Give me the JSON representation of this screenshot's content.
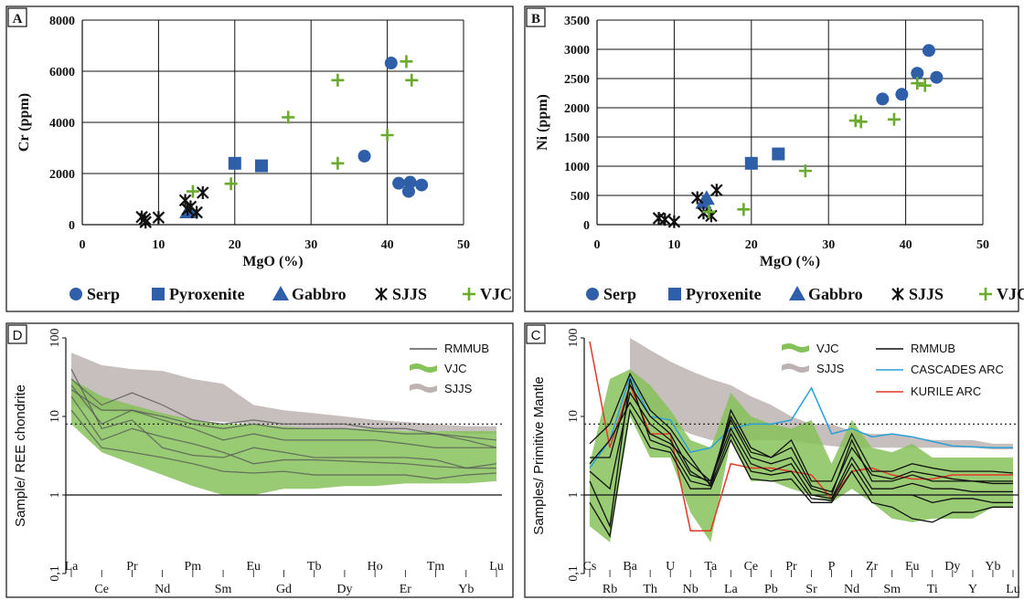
{
  "chart_data": [
    {
      "panel": "A",
      "type": "scatter",
      "xlabel": "MgO (%)",
      "ylabel": "Cr (ppm)",
      "xlim": [
        0,
        50
      ],
      "ylim": [
        0,
        8000
      ],
      "xticks": [
        "0",
        "10",
        "20",
        "30",
        "40",
        "50"
      ],
      "yticks": [
        "0",
        "2000",
        "4000",
        "6000",
        "8000"
      ],
      "grid": true,
      "series": [
        {
          "name": "Serp",
          "marker": "circle",
          "color": "#2f5fa8",
          "points": [
            [
              40.5,
              6320
            ],
            [
              37,
              2680
            ],
            [
              41.5,
              1620
            ],
            [
              43,
              1660
            ],
            [
              42.8,
              1300
            ],
            [
              44.5,
              1550
            ]
          ]
        },
        {
          "name": "Pyroxenite",
          "marker": "square",
          "color": "#2f5fa8",
          "points": [
            [
              20,
              2400
            ],
            [
              23.5,
              2300
            ]
          ]
        },
        {
          "name": "Gabbro",
          "marker": "triangle",
          "color": "#2f5fa8",
          "points": [
            [
              13.8,
              500
            ],
            [
              14.2,
              520
            ]
          ]
        },
        {
          "name": "SJJS",
          "marker": "asterisk",
          "color": "#111111",
          "points": [
            [
              7.8,
              300
            ],
            [
              8.2,
              220
            ],
            [
              8.3,
              100
            ],
            [
              10,
              280
            ],
            [
              13.5,
              950
            ],
            [
              13.8,
              600
            ],
            [
              14.2,
              700
            ],
            [
              15,
              480
            ],
            [
              15.8,
              1250
            ]
          ]
        },
        {
          "name": "VJC",
          "marker": "plus",
          "color": "#6aab2e",
          "points": [
            [
              14.5,
              1300
            ],
            [
              19.5,
              1600
            ],
            [
              27,
              4200
            ],
            [
              33.5,
              5650
            ],
            [
              33.5,
              2400
            ],
            [
              40,
              3500
            ],
            [
              42.5,
              6380
            ],
            [
              43.2,
              5650
            ]
          ]
        }
      ],
      "legend": [
        "Serp",
        "Pyroxenite",
        "Gabbro",
        "SJJS",
        "VJC"
      ]
    },
    {
      "panel": "B",
      "type": "scatter",
      "xlabel": "MgO (%)",
      "ylabel": "Ni (ppm)",
      "xlim": [
        0,
        50
      ],
      "ylim": [
        0,
        3500
      ],
      "xticks": [
        "0",
        "10",
        "20",
        "30",
        "40",
        "50"
      ],
      "yticks": [
        "0",
        "500",
        "1000",
        "1500",
        "2000",
        "2500",
        "3000",
        "3500"
      ],
      "grid": true,
      "series": [
        {
          "name": "Serp",
          "marker": "circle",
          "color": "#2f5fa8",
          "points": [
            [
              37,
              2150
            ],
            [
              39.5,
              2230
            ],
            [
              41.5,
              2590
            ],
            [
              43,
              2980
            ],
            [
              44,
              2520
            ]
          ]
        },
        {
          "name": "Pyroxenite",
          "marker": "square",
          "color": "#2f5fa8",
          "points": [
            [
              20,
              1050
            ],
            [
              23.5,
              1210
            ]
          ]
        },
        {
          "name": "Gabbro",
          "marker": "triangle",
          "color": "#2f5fa8",
          "points": [
            [
              14.2,
              450
            ],
            [
              13.8,
              380
            ]
          ]
        },
        {
          "name": "SJJS",
          "marker": "asterisk",
          "color": "#111111",
          "points": [
            [
              8,
              110
            ],
            [
              8.8,
              90
            ],
            [
              10,
              50
            ],
            [
              13,
              460
            ],
            [
              13.8,
              200
            ],
            [
              14.8,
              150
            ],
            [
              15.5,
              590
            ]
          ]
        },
        {
          "name": "VJC",
          "marker": "plus",
          "color": "#6aab2e",
          "points": [
            [
              14.5,
              220
            ],
            [
              19,
              260
            ],
            [
              27,
              920
            ],
            [
              33.5,
              1780
            ],
            [
              34.2,
              1760
            ],
            [
              38.5,
              1800
            ],
            [
              41.5,
              2420
            ],
            [
              42.5,
              2380
            ]
          ]
        }
      ],
      "legend": [
        "Serp",
        "Pyroxenite",
        "Gabbro",
        "SJJS",
        "VJC"
      ]
    },
    {
      "panel": "D",
      "type": "line",
      "ylabel": "Sample/ REE chondrite",
      "yscale": "log",
      "ylim": [
        0.1,
        100
      ],
      "yticks": [
        "0,1",
        "1",
        "10",
        "100"
      ],
      "reference_line": 8,
      "categories": [
        "La",
        "Ce",
        "Pr",
        "Nd",
        "Pm",
        "Sm",
        "Eu",
        "Gd",
        "Tb",
        "Dy",
        "Ho",
        "Er",
        "Tm",
        "Yb",
        "Lu"
      ],
      "legend": [
        "RMMUB",
        "VJC",
        "SJJS"
      ],
      "bands": [
        {
          "name": "SJJS",
          "color": "#bdb3b3",
          "upper": [
            65,
            45,
            40,
            38,
            30,
            26,
            14,
            12,
            11,
            10,
            9,
            8.5,
            8,
            7.5,
            7.5
          ],
          "lower": [
            14,
            12,
            11,
            10,
            9,
            8.5,
            8,
            7.5,
            7,
            7,
            7,
            6.5,
            6.5,
            6,
            6
          ]
        },
        {
          "name": "VJC",
          "color": "#86c25a",
          "upper": [
            30,
            18,
            14,
            11,
            9,
            8,
            8,
            7.5,
            7,
            7,
            7,
            6.5,
            6.5,
            6.5,
            6.5
          ],
          "lower": [
            8,
            3.5,
            2.5,
            1.8,
            1.3,
            1.0,
            1.0,
            1.2,
            1.2,
            1.3,
            1.3,
            1.4,
            1.4,
            1.4,
            1.5
          ]
        }
      ],
      "series": [
        {
          "name": "RMMUB",
          "values": [
            22,
            12,
            12,
            10,
            8,
            7,
            8,
            7,
            7,
            7,
            6.5,
            6,
            6,
            5.5,
            5
          ]
        },
        {
          "name": "RMMUB",
          "values": [
            30,
            14,
            20,
            14,
            9,
            8,
            9,
            8,
            8,
            8,
            7,
            7,
            6,
            5,
            4
          ]
        },
        {
          "name": "RMMUB",
          "values": [
            25,
            8,
            12,
            9,
            7,
            5,
            6,
            5,
            5,
            5,
            5,
            4.5,
            4,
            4,
            4
          ]
        },
        {
          "name": "RMMUB",
          "values": [
            18,
            5,
            7,
            5.5,
            4.5,
            3.5,
            2.5,
            2.8,
            2.8,
            2.7,
            2.6,
            2.5,
            2.3,
            2.2,
            2.2
          ]
        },
        {
          "name": "RMMUB",
          "values": [
            40,
            7,
            9,
            4,
            3.2,
            3,
            4,
            3.5,
            3,
            3,
            3,
            3,
            2.8,
            2.2,
            2.5
          ]
        },
        {
          "name": "RMMUB",
          "values": [
            12,
            4,
            3.5,
            3,
            2.5,
            2,
            1.9,
            2,
            1.8,
            1.8,
            1.8,
            1.8,
            1.6,
            1.8,
            1.9
          ]
        }
      ]
    },
    {
      "panel": "C",
      "type": "line",
      "ylabel": "Samples/ Primitive Mantle",
      "yscale": "log",
      "ylim": [
        0.1,
        100
      ],
      "yticks": [
        "0,1",
        "1",
        "10",
        "100"
      ],
      "reference_line": 8,
      "categories": [
        "Cs",
        "Rb",
        "Ba",
        "Th",
        "U",
        "Nb",
        "Ta",
        "La",
        "Ce",
        "Pb",
        "Pr",
        "Sr",
        "P",
        "Nd",
        "Zr",
        "Sm",
        "Eu",
        "Ti",
        "Dy",
        "Y",
        "Yb",
        "Lu"
      ],
      "legend": [
        "VJC",
        "SJJS",
        "RMMUB",
        "CASCADES ARC",
        "KURILE ARC"
      ],
      "bands": [
        {
          "name": "SJJS",
          "color": "#bdb3b3",
          "upper": [
            null,
            null,
            100,
            70,
            50,
            38,
            30,
            25,
            18,
            14,
            10,
            8,
            8,
            6.5,
            6,
            6,
            5.5,
            5,
            5,
            5,
            4.5,
            4.5
          ],
          "lower": [
            null,
            null,
            25,
            12,
            8,
            6,
            5,
            5,
            5,
            5,
            5,
            4.5,
            4.2,
            4,
            4,
            4,
            4,
            4,
            4,
            4,
            3.8,
            3.8
          ]
        },
        {
          "name": "VJC",
          "color": "#86c25a",
          "upper": [
            2.5,
            30,
            40,
            25,
            12,
            5,
            4,
            20,
            10,
            8,
            7,
            9,
            2.5,
            9,
            4,
            3.5,
            4.5,
            3,
            3,
            3,
            3,
            3
          ],
          "lower": [
            0.4,
            0.25,
            10,
            3,
            3,
            0.6,
            0.25,
            5,
            1.5,
            1.5,
            1.2,
            1,
            0.8,
            1.2,
            0.8,
            0.5,
            0.45,
            0.5,
            0.5,
            0.5,
            0.7,
            0.7
          ]
        }
      ],
      "series": [
        {
          "name": "CASCADES ARC",
          "color": "#2aa0d8",
          "values": [
            2.2,
            5,
            32,
            10,
            9,
            3.5,
            4,
            7,
            8,
            8,
            9,
            23,
            6,
            7,
            5.5,
            6,
            5.5,
            4.8,
            4.2,
            4.1,
            4,
            4
          ]
        },
        {
          "name": "KURILE ARC",
          "color": "#e03a2a",
          "values": [
            90,
            4,
            25,
            6,
            6,
            0.35,
            0.35,
            2.5,
            2.2,
            2.2,
            2,
            1.8,
            0.9,
            2,
            2.2,
            1.8,
            1.6,
            1.6,
            1.8,
            1.8,
            1.8,
            1.8
          ]
        },
        {
          "name": "RMMUB",
          "color": "#111111",
          "values": [
            4.5,
            8,
            35,
            12,
            7,
            3,
            1.3,
            12,
            4,
            3,
            5,
            1.5,
            1.5,
            6,
            2,
            2,
            2.5,
            2.2,
            2,
            2,
            2,
            1.9
          ]
        },
        {
          "name": "RMMUB",
          "color": "#111111",
          "values": [
            3,
            3,
            25,
            10,
            6,
            2,
            1.4,
            9,
            3,
            2.5,
            3,
            1.2,
            1,
            5,
            1.5,
            1.5,
            1.8,
            1.5,
            1.5,
            1.5,
            1.4,
            1.4
          ]
        },
        {
          "name": "RMMUB",
          "color": "#111111",
          "values": [
            2,
            1.2,
            20,
            8,
            5,
            1.8,
            1.5,
            7,
            2.5,
            2,
            2.5,
            1,
            0.9,
            3,
            1.2,
            1.2,
            1.4,
            1.2,
            1.2,
            1.1,
            1.1,
            1.1
          ]
        },
        {
          "name": "RMMUB",
          "color": "#111111",
          "values": [
            1.5,
            0.4,
            30,
            5,
            4,
            1.5,
            1.3,
            6,
            2,
            1.8,
            2,
            0.9,
            0.85,
            2.5,
            1,
            1,
            1,
            0.8,
            0.9,
            0.9,
            0.8,
            0.8
          ]
        },
        {
          "name": "RMMUB",
          "color": "#111111",
          "values": [
            0.8,
            0.3,
            12,
            4,
            3.5,
            1.2,
            1.2,
            5,
            1.6,
            1.5,
            1.6,
            0.8,
            0.8,
            2,
            0.8,
            0.7,
            0.5,
            0.45,
            0.6,
            0.6,
            0.7,
            0.7
          ]
        },
        {
          "name": "RMMUB",
          "color": "#111111",
          "values": [
            2.5,
            5,
            15,
            6,
            4.5,
            2.5,
            1.5,
            10,
            3.5,
            3,
            4,
            1.3,
            1.1,
            4,
            1.8,
            1.6,
            2,
            1.8,
            1.6,
            1.5,
            1.5,
            1.5
          ]
        }
      ]
    }
  ]
}
